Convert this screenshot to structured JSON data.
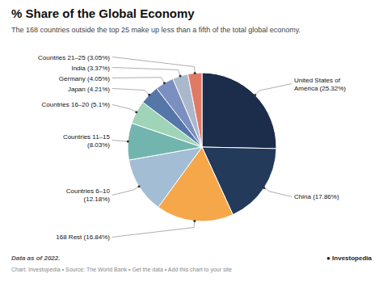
{
  "chart_data": {
    "type": "pie",
    "title": "% Share of the Global Economy",
    "subtitle": "The 168 countries outside the top 25 make up less than a fifth of the total global economy.",
    "annotations": [
      "Data as of 2022.",
      "Chart: Investopedia • Source: The World Bank • Get the data • Add this chart to your site",
      "● Investopedia"
    ],
    "categories": [
      "United States of\nAmerica (25.32%)",
      "China (17.86%)",
      "168 Rest (16.84%)",
      "Countries 6–10\n(12.18%)",
      "Countries 11–15\n(8.03%)",
      "Countries 16–20 (5.1%)",
      "Japan (4.21%)",
      "Germany (4.05%)",
      "India (3.37%)",
      "Countries 21–25 (3.05%)"
    ],
    "values": [
      25.32,
      17.86,
      16.84,
      12.18,
      8.03,
      5.1,
      4.21,
      4.05,
      3.37,
      3.05
    ],
    "colors": [
      "#1b2d4a",
      "#233a5a",
      "#f5a74a",
      "#a3bdd4",
      "#72b5ae",
      "#9fd4b8",
      "#5577a8",
      "#7b8fc0",
      "#aab8cc",
      "#e07a65"
    ]
  }
}
